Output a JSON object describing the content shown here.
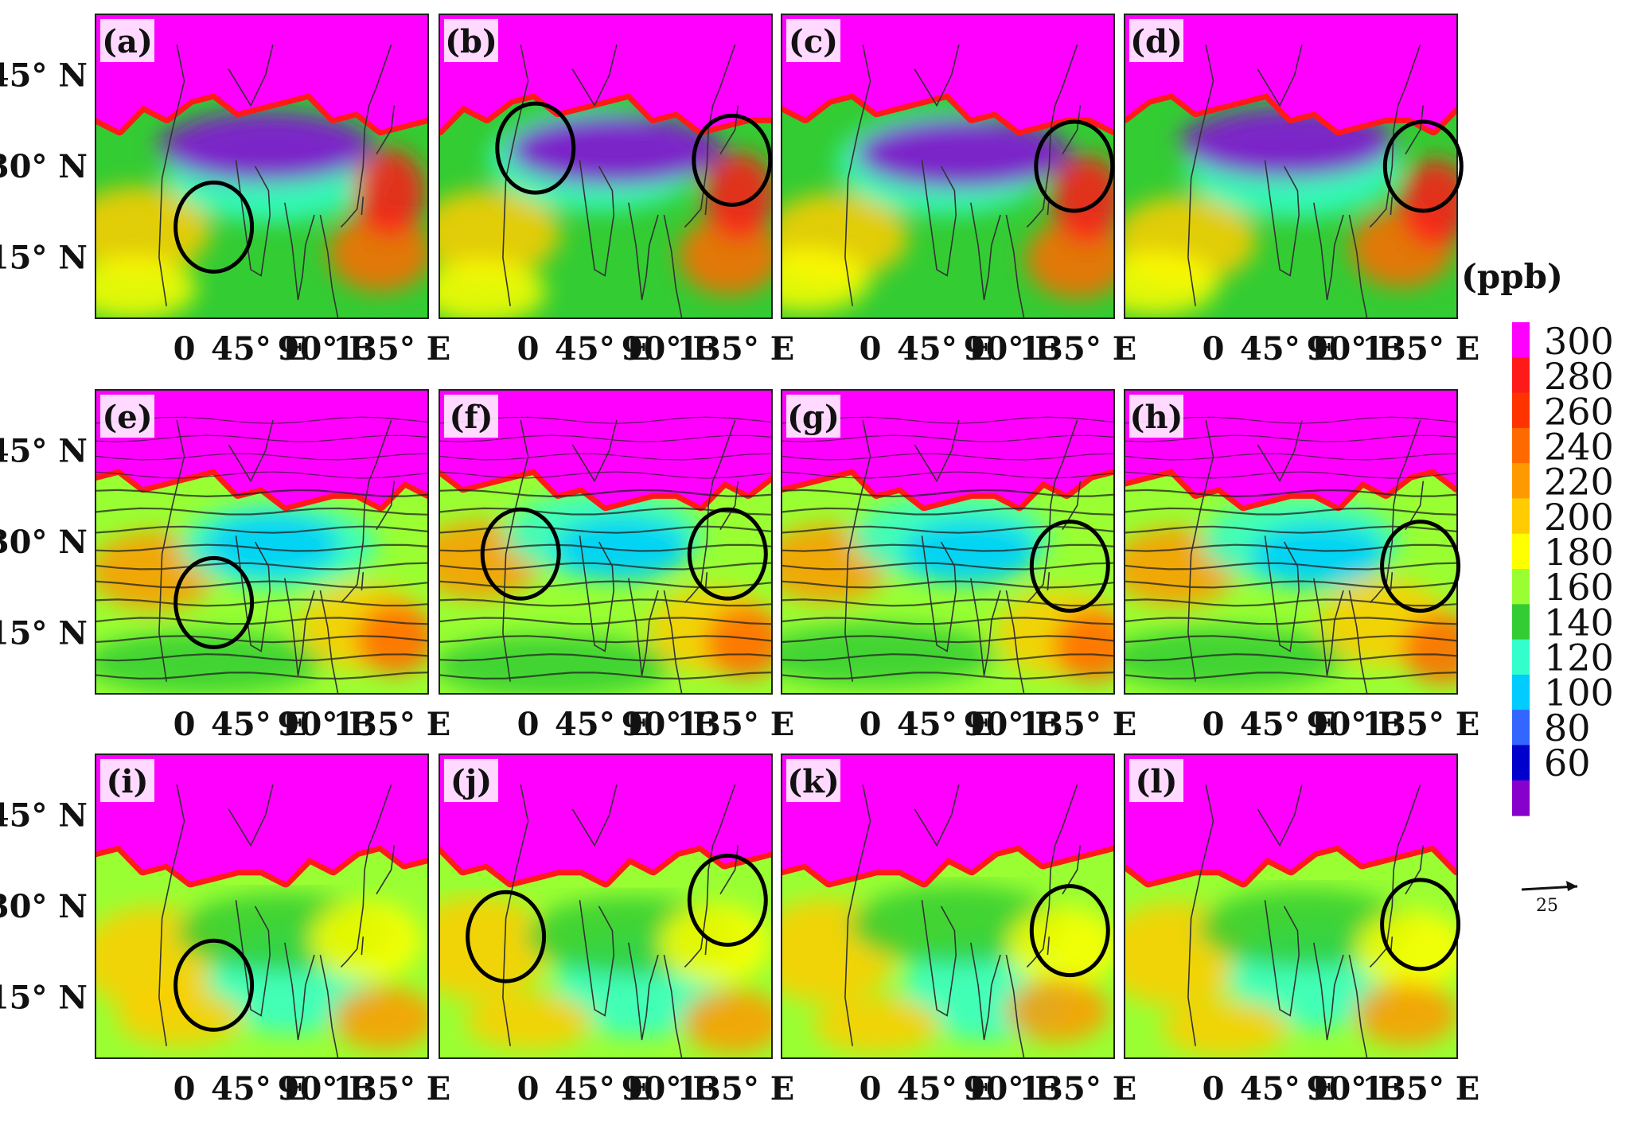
{
  "panels": [
    {
      "label": "(a)",
      "row": 0,
      "col": 0,
      "circles": [
        {
          "lon": 20,
          "lat": 20
        }
      ]
    },
    {
      "label": "(b)",
      "row": 0,
      "col": 1,
      "circles": [
        {
          "lon": 5,
          "lat": 33
        },
        {
          "lon": 138,
          "lat": 31
        }
      ]
    },
    {
      "label": "(c)",
      "row": 0,
      "col": 2,
      "circles": [
        {
          "lon": 138,
          "lat": 30
        }
      ]
    },
    {
      "label": "(d)",
      "row": 0,
      "col": 3,
      "circles": [
        {
          "lon": 142,
          "lat": 30
        }
      ]
    },
    {
      "label": "(e)",
      "row": 1,
      "col": 0,
      "circles": [
        {
          "lon": 20,
          "lat": 20
        }
      ]
    },
    {
      "label": "(f)",
      "row": 1,
      "col": 1,
      "circles": [
        {
          "lon": -5,
          "lat": 28
        },
        {
          "lon": 135,
          "lat": 28
        }
      ]
    },
    {
      "label": "(g)",
      "row": 1,
      "col": 2,
      "circles": [
        {
          "lon": 135,
          "lat": 26
        }
      ]
    },
    {
      "label": "(h)",
      "row": 1,
      "col": 3,
      "circles": [
        {
          "lon": 140,
          "lat": 26
        }
      ]
    },
    {
      "label": "(i)",
      "row": 2,
      "col": 0,
      "circles": [
        {
          "lon": 20,
          "lat": 17
        }
      ]
    },
    {
      "label": "(j)",
      "row": 2,
      "col": 1,
      "circles": [
        {
          "lon": -15,
          "lat": 25
        },
        {
          "lon": 135,
          "lat": 31
        }
      ]
    },
    {
      "label": "(k)",
      "row": 2,
      "col": 2,
      "circles": [
        {
          "lon": 135,
          "lat": 26
        }
      ]
    },
    {
      "label": "(l)",
      "row": 2,
      "col": 3,
      "circles": [
        {
          "lon": 140,
          "lat": 27
        }
      ]
    }
  ],
  "x_ticks": [
    "0",
    "45° E",
    "90° E",
    "135° E"
  ],
  "y_ticks": [
    "45° N",
    "30° N",
    "15° N"
  ],
  "colorbar": {
    "unit": "(ppb)",
    "labels": [
      "300",
      "280",
      "260",
      "240",
      "220",
      "200",
      "180",
      "160",
      "140",
      "120",
      "100",
      "80",
      "60"
    ],
    "colors": [
      "#ff00ff",
      "#ff1a1a",
      "#ff3300",
      "#ff6a00",
      "#ff9900",
      "#ffcc00",
      "#ffff00",
      "#99ff33",
      "#33cc33",
      "#33ffcc",
      "#00ccff",
      "#3366ff",
      "#0000cc",
      "#8800cc"
    ]
  },
  "wind_scale": {
    "value": "25"
  }
}
